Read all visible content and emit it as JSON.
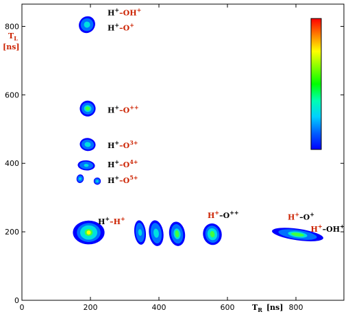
{
  "chart_data": {
    "type": "heatmap",
    "xlabel": "T",
    "xlabel_sub": "R",
    "xlabel_unit": "[ns]",
    "ylabel": "T",
    "ylabel_sub": "L",
    "ylabel_unit": "[ns]",
    "xlim": [
      0,
      940
    ],
    "ylim": [
      0,
      865
    ],
    "xticks": [
      0,
      200,
      400,
      600,
      800
    ],
    "yticks": [
      0,
      200,
      400,
      600,
      800
    ],
    "grid": false,
    "colorbar": {
      "position": "right",
      "colors": [
        "#ff0000",
        "#ff8000",
        "#ffff00",
        "#80ff00",
        "#00ff00",
        "#00ffb0",
        "#00d0ff",
        "#0060ff",
        "#0000ff"
      ]
    },
    "colors": {
      "black": "#000000",
      "red": "#cc2200"
    },
    "islands": [
      {
        "x": 190,
        "y": 805,
        "rx": 12,
        "ry": 22,
        "angle": -55,
        "peak": 0.55
      },
      {
        "x": 192,
        "y": 560,
        "rx": 11,
        "ry": 22,
        "angle": -80,
        "peak": 0.7
      },
      {
        "x": 192,
        "y": 455,
        "rx": 9,
        "ry": 22,
        "angle": -82,
        "peak": 0.55
      },
      {
        "x": 188,
        "y": 394,
        "rx": 7,
        "ry": 24,
        "angle": -86,
        "peak": 0.35
      },
      {
        "x": 170,
        "y": 355,
        "rx": 6,
        "ry": 10,
        "angle": -80,
        "peak": 0.3
      },
      {
        "x": 220,
        "y": 348,
        "rx": 5,
        "ry": 10,
        "angle": -80,
        "peak": 0.25
      },
      {
        "x": 195,
        "y": 198,
        "rx": 22,
        "ry": 33,
        "angle": 0,
        "peak": 1.0
      },
      {
        "x": 345,
        "y": 198,
        "rx": 8,
        "ry": 34,
        "angle": -6,
        "peak": 0.4
      },
      {
        "x": 392,
        "y": 196,
        "rx": 10,
        "ry": 36,
        "angle": -8,
        "peak": 0.55
      },
      {
        "x": 453,
        "y": 194,
        "rx": 11,
        "ry": 34,
        "angle": -8,
        "peak": 0.7
      },
      {
        "x": 556,
        "y": 193,
        "rx": 13,
        "ry": 30,
        "angle": -10,
        "peak": 0.9
      },
      {
        "x": 805,
        "y": 192,
        "rx": 36,
        "ry": 16,
        "angle": 8,
        "peak": 0.7
      }
    ]
  },
  "annotations": [
    {
      "name": "label-h-oh",
      "x": 250,
      "y": 832,
      "parts": [
        {
          "t": "H",
          "c": "black"
        },
        {
          "t": "+",
          "c": "black",
          "sup": true
        },
        {
          "t": "–OH",
          "c": "red"
        },
        {
          "t": "+",
          "c": "red",
          "sup": true
        }
      ]
    },
    {
      "name": "label-h-o",
      "x": 250,
      "y": 788,
      "parts": [
        {
          "t": "H",
          "c": "black"
        },
        {
          "t": "+",
          "c": "black",
          "sup": true
        },
        {
          "t": "–O",
          "c": "red"
        },
        {
          "t": "+",
          "c": "red",
          "sup": true
        }
      ]
    },
    {
      "name": "label-h-o2",
      "x": 250,
      "y": 548,
      "parts": [
        {
          "t": "H",
          "c": "black"
        },
        {
          "t": "+",
          "c": "black",
          "sup": true
        },
        {
          "t": "–O",
          "c": "red"
        },
        {
          "t": "++",
          "c": "red",
          "sup": true
        }
      ]
    },
    {
      "name": "label-h-o3",
      "x": 250,
      "y": 445,
      "parts": [
        {
          "t": "H",
          "c": "black"
        },
        {
          "t": "+",
          "c": "black",
          "sup": true
        },
        {
          "t": "–O",
          "c": "red"
        },
        {
          "t": "3+",
          "c": "red",
          "sup": true
        }
      ]
    },
    {
      "name": "label-h-o4",
      "x": 250,
      "y": 388,
      "parts": [
        {
          "t": "H",
          "c": "black"
        },
        {
          "t": "+",
          "c": "black",
          "sup": true
        },
        {
          "t": "–O",
          "c": "red"
        },
        {
          "t": "4+",
          "c": "red",
          "sup": true
        }
      ]
    },
    {
      "name": "label-h-o5",
      "x": 250,
      "y": 342,
      "parts": [
        {
          "t": "H",
          "c": "black"
        },
        {
          "t": "+",
          "c": "black",
          "sup": true
        },
        {
          "t": "–O",
          "c": "red"
        },
        {
          "t": "5+",
          "c": "red",
          "sup": true
        }
      ]
    },
    {
      "name": "label-h-h",
      "x": 222,
      "y": 222,
      "parts": [
        {
          "t": "H",
          "c": "black"
        },
        {
          "t": "+",
          "c": "black",
          "sup": true
        },
        {
          "t": "–H",
          "c": "red"
        },
        {
          "t": "+",
          "c": "red",
          "sup": true
        }
      ]
    },
    {
      "name": "label-o2-h",
      "x": 542,
      "y": 240,
      "parts": [
        {
          "t": "H",
          "c": "red"
        },
        {
          "t": "+",
          "c": "red",
          "sup": true
        },
        {
          "t": "–O",
          "c": "black"
        },
        {
          "t": "++",
          "c": "black",
          "sup": true
        }
      ]
    },
    {
      "name": "label-o-h",
      "x": 776,
      "y": 235,
      "parts": [
        {
          "t": "H",
          "c": "red"
        },
        {
          "t": "+",
          "c": "red",
          "sup": true
        },
        {
          "t": "–O",
          "c": "black"
        },
        {
          "t": "+",
          "c": "black",
          "sup": true
        }
      ]
    },
    {
      "name": "label-oh-h",
      "x": 843,
      "y": 200,
      "parts": [
        {
          "t": "H",
          "c": "red"
        },
        {
          "t": "+",
          "c": "red",
          "sup": true
        },
        {
          "t": "–OH",
          "c": "black"
        },
        {
          "t": "+",
          "c": "black",
          "sup": true
        }
      ]
    }
  ]
}
